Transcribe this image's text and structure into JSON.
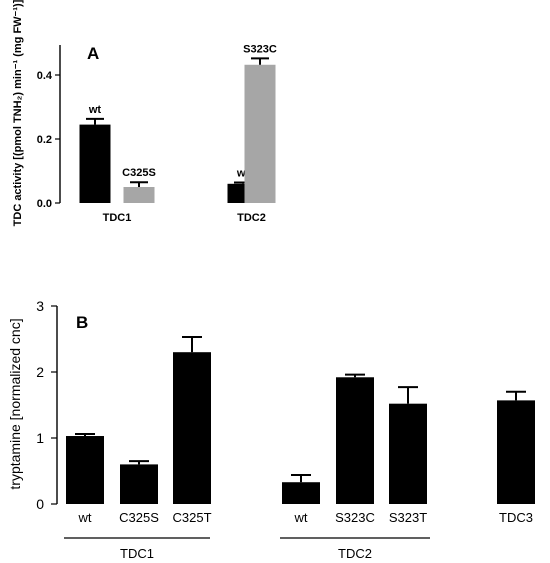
{
  "chart_data": [
    {
      "panel": "A",
      "type": "bar",
      "ylabel": "TDC activity [(pmol TNH₂) min⁻¹ (mg FW⁻¹)]",
      "ylim": [
        0,
        0.45
      ],
      "yticks": [
        "0.0",
        "0.2",
        "0.4"
      ],
      "groups": [
        {
          "label": "TDC1",
          "bars": [
            {
              "label": "wt",
              "value": 0.245,
              "error": 0.018,
              "color": "#000000"
            },
            {
              "label": "C325S",
              "value": 0.05,
              "error": 0.015,
              "color": "#a6a6a6"
            }
          ]
        },
        {
          "label": "TDC2",
          "bars": [
            {
              "label": "wt",
              "value": 0.06,
              "error": 0.004,
              "color": "#000000"
            },
            {
              "label": "S323C",
              "value": 0.432,
              "error": 0.02,
              "color": "#a6a6a6"
            }
          ]
        }
      ]
    },
    {
      "panel": "B",
      "type": "bar",
      "ylabel": "tryptamine [normalized cnc]",
      "ylim": [
        0,
        3
      ],
      "yticks": [
        "0",
        "1",
        "2",
        "3"
      ],
      "bars": [
        {
          "label": "wt",
          "value": 1.03,
          "error": 0.03,
          "color": "#000000"
        },
        {
          "label": "C325S",
          "value": 0.6,
          "error": 0.05,
          "color": "#000000"
        },
        {
          "label": "C325T",
          "value": 2.3,
          "error": 0.23,
          "color": "#000000"
        },
        {
          "label": "wt",
          "value": 0.33,
          "error": 0.11,
          "color": "#000000"
        },
        {
          "label": "S323C",
          "value": 1.92,
          "error": 0.04,
          "color": "#000000"
        },
        {
          "label": "S323T",
          "value": 1.52,
          "error": 0.25,
          "color": "#000000"
        },
        {
          "label": "TDC3",
          "value": 1.57,
          "error": 0.13,
          "color": "#000000"
        }
      ],
      "group_labels": [
        "TDC1",
        "TDC2"
      ]
    }
  ]
}
